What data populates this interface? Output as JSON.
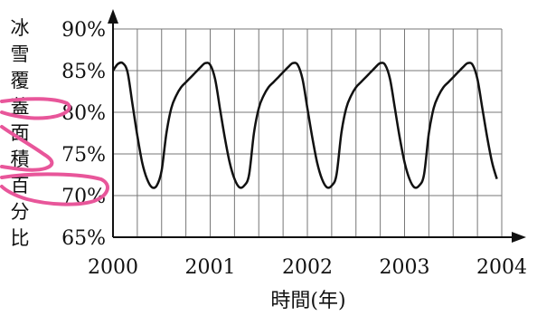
{
  "chart_data": {
    "type": "line",
    "title": "",
    "ylabel": "冰雪覆蓋面積百分比",
    "xlabel": "時間(年)",
    "xlim": [
      2000,
      2004
    ],
    "ylim": [
      65,
      90
    ],
    "x_ticks": [
      {
        "value": 2000,
        "label": "2000"
      },
      {
        "value": 2001,
        "label": "2001"
      },
      {
        "value": 2002,
        "label": "2002"
      },
      {
        "value": 2003,
        "label": "2003"
      },
      {
        "value": 2004,
        "label": "2004"
      }
    ],
    "y_ticks": [
      {
        "value": 65,
        "label": "65%"
      },
      {
        "value": 70,
        "label": "70%"
      },
      {
        "value": 75,
        "label": "75%"
      },
      {
        "value": 80,
        "label": "80%"
      },
      {
        "value": 85,
        "label": "85%"
      },
      {
        "value": 90,
        "label": "90%"
      }
    ],
    "grid": true,
    "series": [
      {
        "x": [
          2000.0,
          2000.05,
          2000.1,
          2000.15,
          2000.2,
          2000.25,
          2000.3,
          2000.35,
          2000.4,
          2000.45,
          2000.5,
          2000.55,
          2000.6,
          2000.65,
          2000.7,
          2000.75,
          2000.8,
          2000.85,
          2000.9,
          2000.95,
          2001.0,
          2001.05,
          2001.1,
          2001.15,
          2001.2,
          2001.25,
          2001.3,
          2001.35,
          2001.4,
          2001.45,
          2001.5,
          2001.55,
          2001.6,
          2001.65,
          2001.7,
          2001.75,
          2001.8,
          2001.85,
          2001.9,
          2001.95,
          2002.0,
          2002.05,
          2002.1,
          2002.15,
          2002.2,
          2002.25,
          2002.3,
          2002.35,
          2002.4,
          2002.45,
          2002.5,
          2002.55,
          2002.6,
          2002.65,
          2002.7,
          2002.75,
          2002.8,
          2002.85,
          2002.9,
          2002.95,
          2003.0,
          2003.05,
          2003.1,
          2003.15,
          2003.2,
          2003.25,
          2003.3,
          2003.35,
          2003.4,
          2003.45,
          2003.5,
          2003.55,
          2003.6,
          2003.65,
          2003.7,
          2003.75,
          2003.8,
          2003.85,
          2003.9,
          2003.95
        ],
        "y": [
          85.0,
          85.8,
          85.9,
          84.8,
          81.0,
          77.2,
          74.0,
          72.0,
          71.0,
          71.2,
          73.0,
          77.5,
          80.5,
          82.0,
          83.0,
          83.6,
          84.2,
          84.8,
          85.4,
          85.9,
          85.7,
          84.0,
          80.5,
          77.0,
          74.0,
          72.0,
          71.0,
          71.2,
          72.5,
          77.5,
          80.5,
          82.0,
          83.0,
          83.6,
          84.2,
          84.8,
          85.4,
          85.9,
          85.7,
          84.0,
          80.5,
          77.0,
          74.0,
          72.0,
          71.0,
          71.2,
          72.5,
          77.5,
          80.5,
          82.0,
          83.0,
          83.6,
          84.2,
          84.8,
          85.4,
          85.9,
          85.7,
          84.0,
          80.5,
          77.0,
          74.0,
          72.0,
          71.0,
          71.2,
          72.5,
          77.5,
          80.5,
          82.0,
          83.0,
          83.6,
          84.2,
          84.8,
          85.4,
          85.9,
          85.7,
          84.0,
          80.5,
          77.0,
          74.0,
          72.0
        ]
      }
    ],
    "line_color": "#111111",
    "grid_color": "#777777",
    "annotation_color": "#e8569a"
  }
}
